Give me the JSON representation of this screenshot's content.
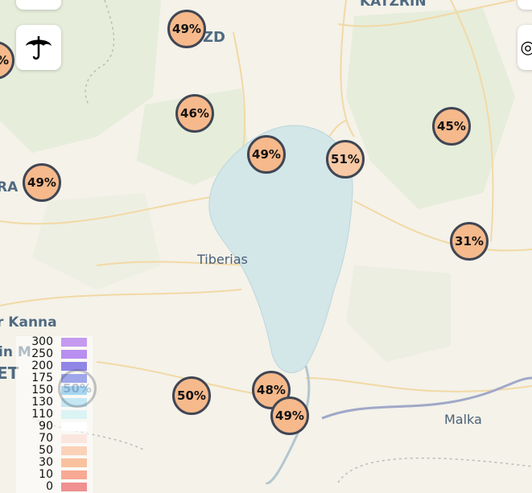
{
  "map": {
    "places": [
      "KATZRIN",
      "ZD",
      "Tiberias",
      "RA",
      "r Kanna",
      "in M",
      "ET",
      "Malka"
    ],
    "markers": [
      {
        "label": "49%",
        "color": "#f6b98b"
      },
      {
        "label": "46%",
        "color": "#f6b98b"
      },
      {
        "label": "49%",
        "color": "#f6b98b"
      },
      {
        "label": "51%",
        "color": "#f8c9a5"
      },
      {
        "label": "45%",
        "color": "#f6b98b"
      },
      {
        "label": "49%",
        "color": "#f6b98b"
      },
      {
        "label": "31%",
        "color": "#f6b98b"
      },
      {
        "label": "50%",
        "color": "#f6b98b"
      },
      {
        "label": "48%",
        "color": "#f6b98b"
      },
      {
        "label": "49%",
        "color": "#f6b98b"
      },
      {
        "label": "%",
        "color": "#f6b98b"
      },
      {
        "label": "50%",
        "color": "transparent"
      }
    ]
  },
  "controls": {
    "umbrella_icon": "umbrella-icon",
    "globe_icon": "globe-icon"
  },
  "legend": [
    {
      "value": "300",
      "color": "#c49af0"
    },
    {
      "value": "250",
      "color": "#b88ef0"
    },
    {
      "value": "200",
      "color": "#8f86e6"
    },
    {
      "value": "175",
      "color": "#9fa6ea"
    },
    {
      "value": "150",
      "color": "#a5d6f2"
    },
    {
      "value": "130",
      "color": "#c3e8f4"
    },
    {
      "value": "110",
      "color": "#dcf3f4"
    },
    {
      "value": "90",
      "color": "#ffffff"
    },
    {
      "value": "70",
      "color": "#fbe6de"
    },
    {
      "value": "50",
      "color": "#fbd2b8"
    },
    {
      "value": "30",
      "color": "#f9c19e"
    },
    {
      "value": "10",
      "color": "#f7a994"
    },
    {
      "value": "0",
      "color": "#f09090"
    }
  ]
}
